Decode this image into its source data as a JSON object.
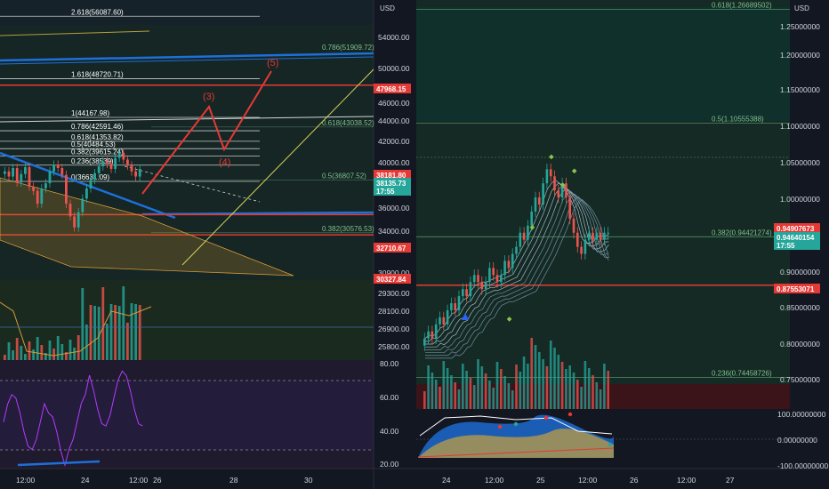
{
  "left_chart": {
    "currency": "USD",
    "price_axis": [
      "54000.00",
      "50000.00",
      "46000.00",
      "44000.00",
      "42000.00",
      "40000.00",
      "36000.00",
      "34000.00",
      "30900.00",
      "29300.00",
      "28100.00",
      "26900.00",
      "25800.00"
    ],
    "price_tags": [
      {
        "text": "47968.15",
        "color": "#e53935"
      },
      {
        "text": "38181.80",
        "color": "#e53935"
      },
      {
        "text": "38135.73",
        "color": "#26a69a"
      },
      {
        "text": "17:55",
        "color": "#26a69a"
      },
      {
        "text": "32710.67",
        "color": "#e53935"
      },
      {
        "text": "30327.84",
        "color": "#e53935"
      }
    ],
    "fib_upper": [
      "2.618(56087.60)",
      "1.618(48720.71)",
      "1(44167.98)",
      "0.786(42591.46)",
      "0.618(41353.82)",
      "0.5(40484.53)",
      "0.382(39615.24)",
      "0.236(38539)",
      "0(36631.09)"
    ],
    "fib_right": [
      "0.786(51909.72)",
      "0.618(43038.52)",
      "0.5(36807.52)",
      "0.382(30576.53)"
    ],
    "waves": [
      "(5)",
      "(3)",
      "(4)"
    ],
    "rsi_axis": [
      "80.00",
      "60.00",
      "40.00",
      "20.00"
    ],
    "x_axis": [
      "12:00",
      "24",
      "12:00",
      "26",
      "28",
      "30"
    ]
  },
  "right_chart": {
    "currency": "USD",
    "price_axis": [
      "1.25000000",
      "1.20000000",
      "1.15000000",
      "1.10000000",
      "1.05000000",
      "1.00000000",
      "0.90000000",
      "0.85000000",
      "0.80000000",
      "0.75000000"
    ],
    "price_tags": [
      {
        "text": "0.94907673",
        "color": "#e53935"
      },
      {
        "text": "0.94640154",
        "color": "#26a69a"
      },
      {
        "text": "17:55",
        "color": "#26a69a"
      },
      {
        "text": "0.87553071",
        "color": "#e53935"
      }
    ],
    "fib": [
      "0.618(1.26689502)",
      "0.5(1.10555388)",
      "0.382(0.94421274)",
      "0.236(0.74458726)"
    ],
    "osc_axis": [
      "100.00000000",
      "0.00000000",
      "-100.00000000"
    ],
    "x_axis": [
      "24",
      "12:00",
      "25",
      "12:00",
      "26",
      "12:00",
      "27"
    ]
  },
  "chart_data": [
    {
      "type": "candlestick",
      "title": "",
      "currency": "USD",
      "ylim": [
        25000,
        58000
      ],
      "fib_levels": [
        {
          "ratio": 2.618,
          "price": 56087.6
        },
        {
          "ratio": 1.618,
          "price": 48720.71
        },
        {
          "ratio": 1,
          "price": 44167.98
        },
        {
          "ratio": 0.786,
          "price": 42591.46
        },
        {
          "ratio": 0.618,
          "price": 41353.82
        },
        {
          "ratio": 0.5,
          "price": 40484.53
        },
        {
          "ratio": 0.382,
          "price": 39615.24
        },
        {
          "ratio": 0.236,
          "price": 38539
        },
        {
          "ratio": 0,
          "price": 36631.09
        }
      ],
      "fib_levels_right": [
        {
          "ratio": 0.786,
          "price": 51909.72
        },
        {
          "ratio": 0.618,
          "price": 43038.52
        },
        {
          "ratio": 0.5,
          "price": 36807.52
        },
        {
          "ratio": 0.382,
          "price": 30576.53
        }
      ],
      "horizontal_levels": [
        47968.15,
        32710.67,
        30327.84
      ],
      "last_price": 38135.73,
      "rsi_ylim": [
        15,
        85
      ]
    },
    {
      "type": "candlestick",
      "title": "",
      "currency": "USD",
      "ylim": [
        0.7,
        1.28
      ],
      "fib_levels": [
        {
          "ratio": 0.618,
          "price": 1.26689502
        },
        {
          "ratio": 0.5,
          "price": 1.10555388
        },
        {
          "ratio": 0.382,
          "price": 0.94421274
        },
        {
          "ratio": 0.236,
          "price": 0.74458726
        }
      ],
      "horizontal_levels": [
        0.94907673,
        0.87553071
      ],
      "last_price": 0.94640154,
      "closes": [
        0.8,
        0.81,
        0.8,
        0.82,
        0.83,
        0.82,
        0.84,
        0.85,
        0.84,
        0.86,
        0.87,
        0.86,
        0.88,
        0.89,
        0.88,
        0.87,
        0.88,
        0.9,
        0.89,
        0.88,
        0.89,
        0.91,
        0.9,
        0.92,
        0.93,
        0.95,
        0.94,
        0.96,
        0.98,
        1.0,
        0.99,
        1.02,
        1.04,
        1.03,
        1.01,
        1.0,
        1.02,
        1.0,
        0.97,
        0.95,
        0.93,
        0.92,
        0.94,
        0.95,
        0.94,
        0.95,
        0.94,
        0.95,
        0.95
      ],
      "osc_ylim": [
        -110,
        110
      ]
    }
  ]
}
